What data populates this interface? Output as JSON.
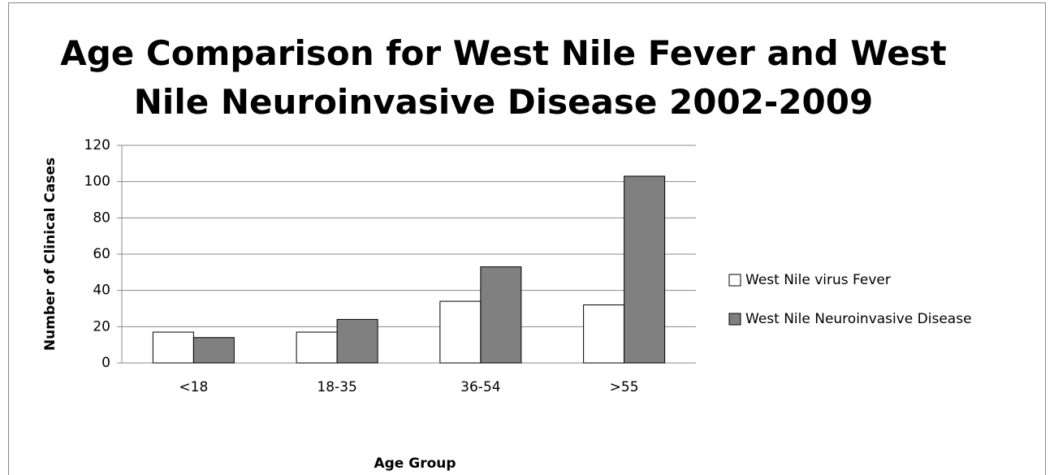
{
  "chart_data": {
    "type": "bar",
    "title": "Age Comparison for West Nile Fever and West Nile Neuroinvasive Disease 2002-2009",
    "xlabel": "Age Group",
    "ylabel": "Number of Clinical Cases",
    "categories": [
      "<18",
      "18-35",
      "36-54",
      ">55"
    ],
    "series": [
      {
        "name": "West Nile virus Fever",
        "color": "#ffffff",
        "values": [
          17,
          17,
          34,
          32
        ]
      },
      {
        "name": "West Nile Neuroinvasive Disease",
        "color": "#808080",
        "values": [
          14,
          24,
          53,
          103
        ]
      }
    ],
    "ylim": [
      0,
      120
    ],
    "yticks": [
      0,
      20,
      40,
      60,
      80,
      100,
      120
    ],
    "grid": true,
    "legend": "right"
  }
}
